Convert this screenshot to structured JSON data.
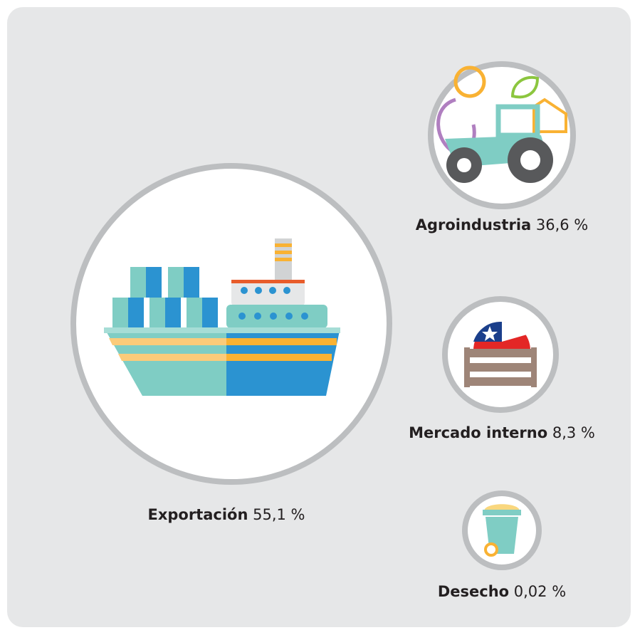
{
  "items": [
    {
      "name": "Exportación",
      "share": "55,1 %"
    },
    {
      "name": "Agroindustria",
      "share": "36,6 %"
    },
    {
      "name": "Mercado interno",
      "share": "8,3 %"
    },
    {
      "name": "Desecho",
      "share": "0,02 %"
    }
  ]
}
